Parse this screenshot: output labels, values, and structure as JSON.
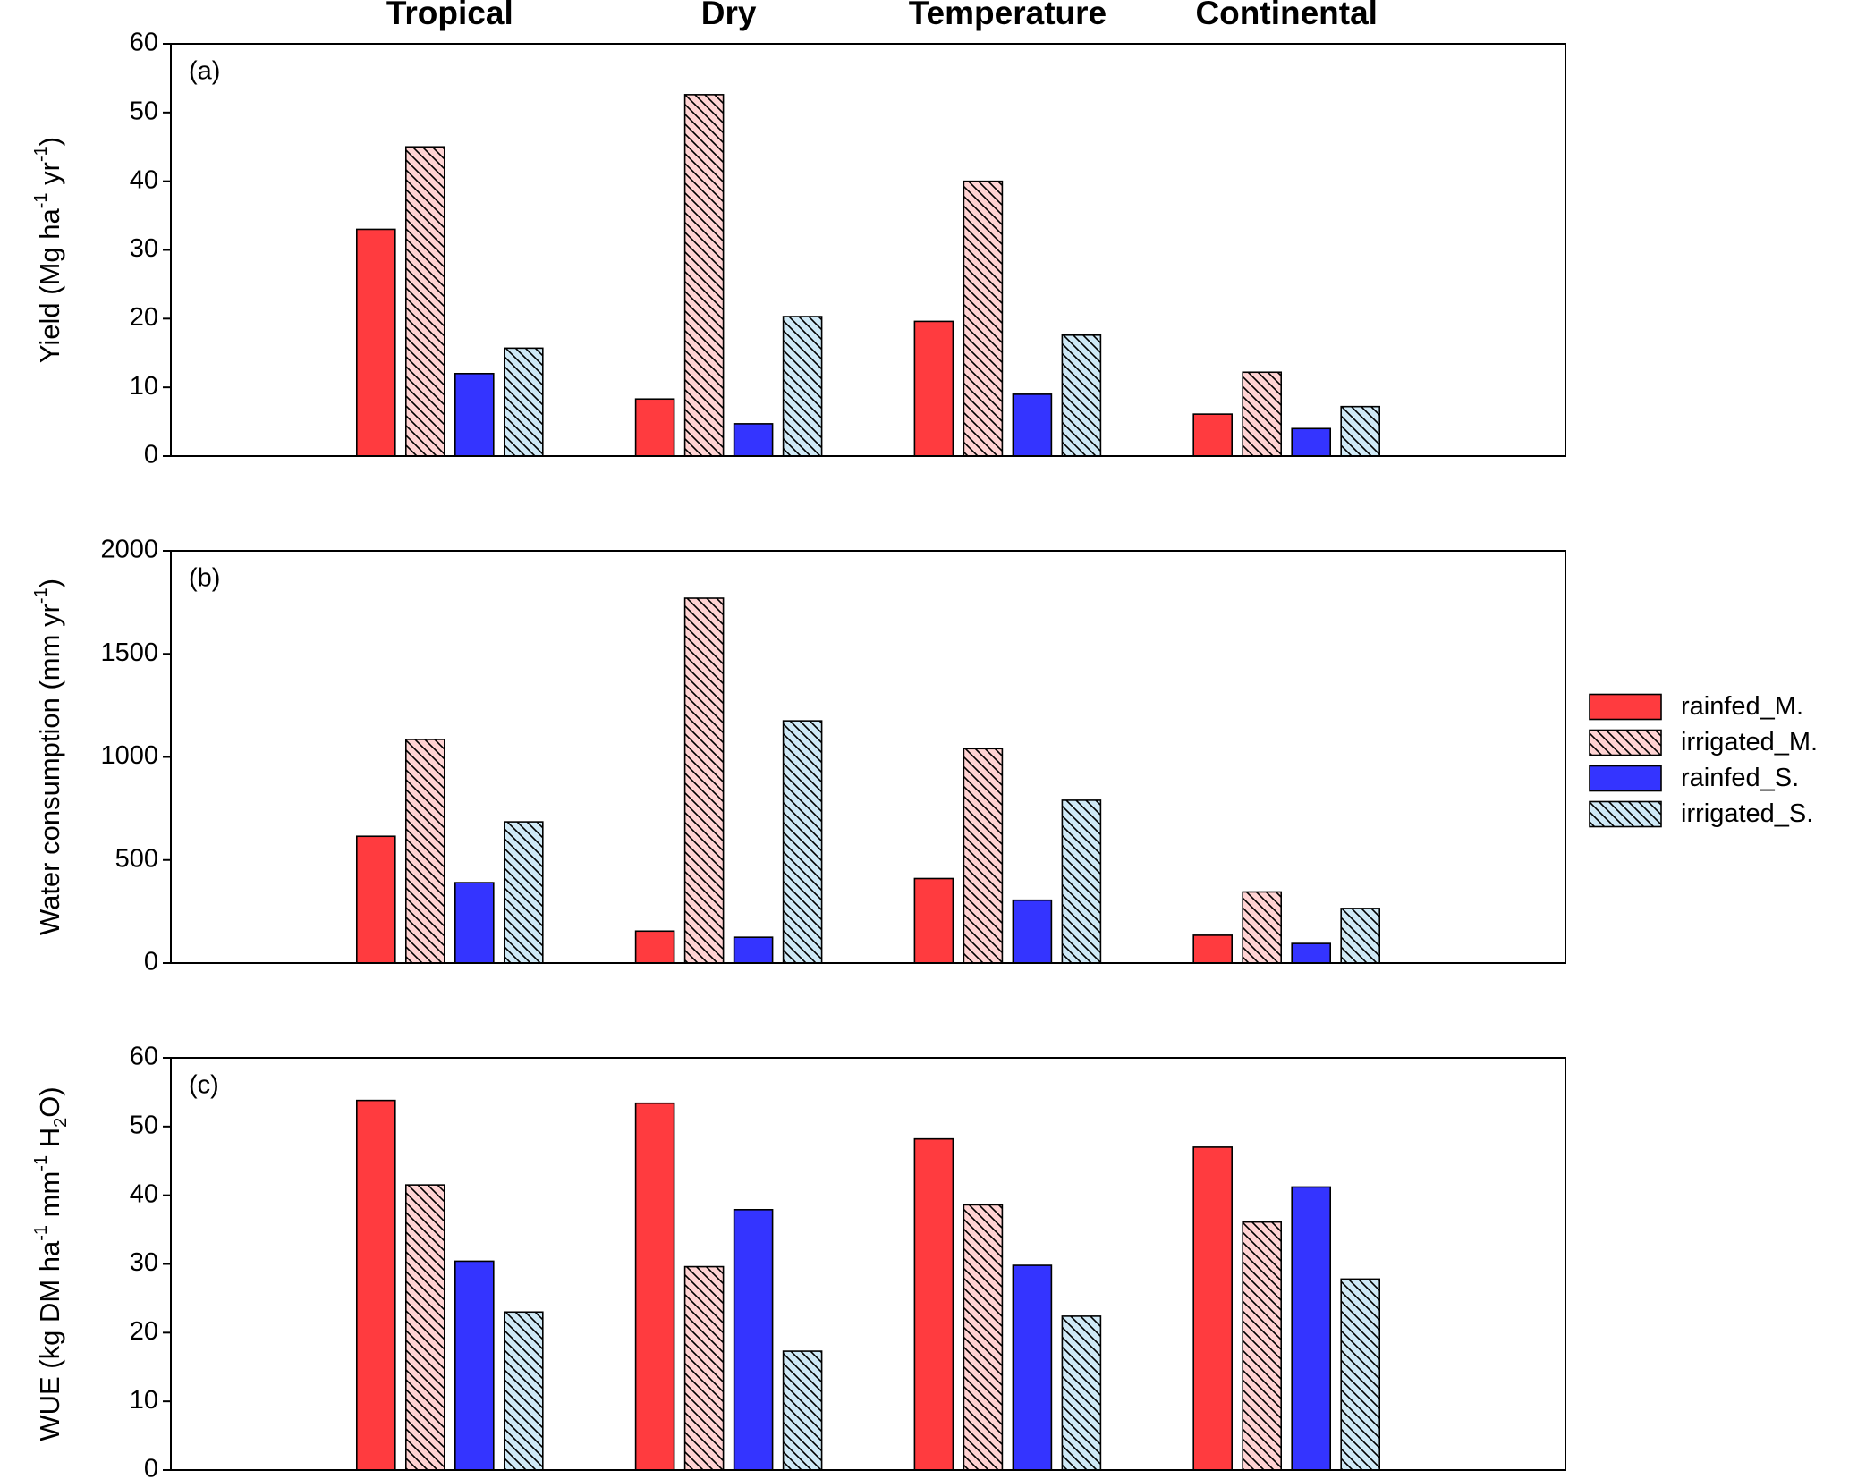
{
  "chart_data": [
    {
      "type": "bar",
      "annotation": "(a)",
      "categories": [
        "Tropical",
        "Dry",
        "Temperature",
        "Continental"
      ],
      "ylabel": [
        "Yield (Mg ha",
        {
          "sup": "-1"
        },
        " yr",
        {
          "sup": "-1"
        },
        ")"
      ],
      "ylim": [
        0,
        60
      ],
      "yticks": [
        0,
        10,
        20,
        30,
        40,
        50,
        60
      ],
      "series": [
        {
          "color": "#ff3b3f",
          "values": [
            33,
            8.3,
            19.6,
            6.1
          ]
        },
        {
          "color": "#ffd3d3",
          "hatch": true,
          "values": [
            45,
            52.6,
            40,
            12.2
          ]
        },
        {
          "color": "#3434ff",
          "values": [
            12,
            4.7,
            9,
            4
          ]
        },
        {
          "color": "#cfe9f6",
          "hatch": true,
          "values": [
            15.7,
            20.3,
            17.6,
            7.2
          ]
        }
      ]
    },
    {
      "type": "bar",
      "annotation": "(b)",
      "legend": "right",
      "ylabel": [
        "Water consumption (mm yr",
        {
          "sup": "-1"
        },
        ")"
      ],
      "ylim": [
        0,
        2000
      ],
      "yticks": [
        0,
        500,
        1000,
        1500,
        2000
      ],
      "series": [
        {
          "name": "rainfed_M.",
          "color": "#ff3b3f",
          "values": [
            615,
            155,
            410,
            135
          ]
        },
        {
          "name": "irrigated_M.",
          "color": "#ffd3d3",
          "hatch": true,
          "values": [
            1085,
            1770,
            1040,
            345
          ]
        },
        {
          "name": "rainfed_S.",
          "color": "#3434ff",
          "values": [
            390,
            125,
            305,
            95
          ]
        },
        {
          "name": "irrigated_S.",
          "color": "#cfe9f6",
          "hatch": true,
          "values": [
            685,
            1175,
            790,
            265
          ]
        }
      ]
    },
    {
      "type": "bar",
      "annotation": "(c)",
      "ylabel": [
        "WUE (kg DM ha",
        {
          "sup": "-1"
        },
        " mm",
        {
          "sup": "-1"
        },
        " H",
        {
          "sub": "2"
        },
        "O)"
      ],
      "ylim": [
        0,
        60
      ],
      "yticks": [
        0,
        10,
        20,
        30,
        40,
        50,
        60
      ],
      "series": [
        {
          "color": "#ff3b3f",
          "values": [
            53.8,
            53.4,
            48.2,
            47
          ]
        },
        {
          "color": "#ffd3d3",
          "hatch": true,
          "values": [
            41.5,
            29.6,
            38.6,
            36.1
          ]
        },
        {
          "color": "#3434ff",
          "values": [
            30.4,
            37.9,
            29.8,
            41.2
          ]
        },
        {
          "color": "#cfe9f6",
          "hatch": true,
          "values": [
            23,
            17.3,
            22.4,
            27.8
          ]
        }
      ]
    }
  ]
}
